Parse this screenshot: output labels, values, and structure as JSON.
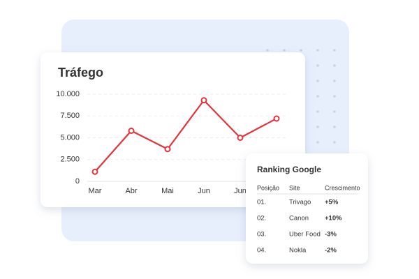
{
  "chart_data": {
    "type": "line",
    "title": "Tráfego",
    "categories": [
      "Mar",
      "Abr",
      "Mai",
      "Jun",
      "Jun",
      null
    ],
    "values": [
      1100,
      5800,
      3700,
      9300,
      5000,
      7200
    ],
    "color": "#e3343c",
    "ylim": [
      0,
      10000
    ],
    "yticks": [
      0,
      {
        "value": 2500,
        "label": "2.500"
      },
      {
        "value": 5000,
        "label": "5.000"
      },
      {
        "value": 7500,
        "label": "7.500"
      },
      {
        "value": 10000,
        "label": "10.000"
      }
    ],
    "grid": true
  },
  "table": {
    "title": "Ranking Google",
    "headers": [
      "Posição",
      "Site",
      "Crescimento"
    ],
    "rows": [
      {
        "position": "01.",
        "site": "Trivago",
        "growth": "+5%",
        "color": "#1a6fd8"
      },
      {
        "position": "02.",
        "site": "Canon",
        "growth": "+10%",
        "color": "#1a6fd8"
      },
      {
        "position": "03.",
        "site": "Uber Food",
        "growth": "-3%",
        "color": "#e3343c"
      },
      {
        "position": "04.",
        "site": "Nokla",
        "growth": "-2%",
        "color": "#e3343c"
      }
    ]
  }
}
